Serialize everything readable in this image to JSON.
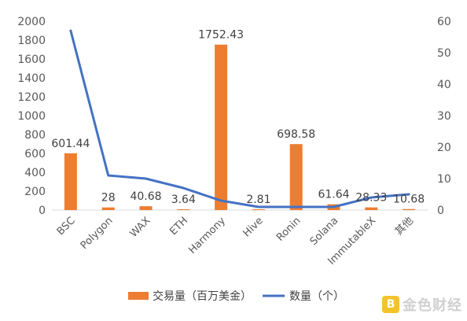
{
  "chart_data": {
    "type": "bar",
    "categories": [
      "BSC",
      "Polygon",
      "WAX",
      "ETH",
      "Harmony",
      "Hive",
      "Ronin",
      "Solana",
      "ImmutableX",
      "其他"
    ],
    "series": [
      {
        "name": "交易量（百万美金）",
        "type": "bar",
        "axis": "left",
        "color": "#ed7d31",
        "values": [
          601.44,
          28,
          40.68,
          3.64,
          1752.43,
          2.81,
          698.58,
          61.64,
          28.33,
          10.68
        ],
        "labels": [
          "601.44",
          "28",
          "40.68",
          "3.64",
          "1752.43",
          "2.81",
          "698.58",
          "61.64",
          "28.33",
          "10.68"
        ]
      },
      {
        "name": "数量（个）",
        "type": "line",
        "axis": "right",
        "color": "#4472c4",
        "values": [
          57,
          11,
          10,
          7,
          3,
          1,
          1,
          1,
          4,
          5
        ]
      }
    ],
    "y_left": {
      "min": 0,
      "max": 2000,
      "step": 200,
      "ticks": [
        "0",
        "200",
        "400",
        "600",
        "800",
        "1000",
        "1200",
        "1400",
        "1600",
        "1800",
        "2000"
      ]
    },
    "y_right": {
      "min": 0,
      "max": 60,
      "step": 10,
      "ticks": [
        "0",
        "10",
        "20",
        "30",
        "40",
        "50",
        "60"
      ]
    },
    "legend_position": "bottom",
    "grid": false
  },
  "watermark": {
    "logo_glyph": "B",
    "text": "金色财经"
  }
}
